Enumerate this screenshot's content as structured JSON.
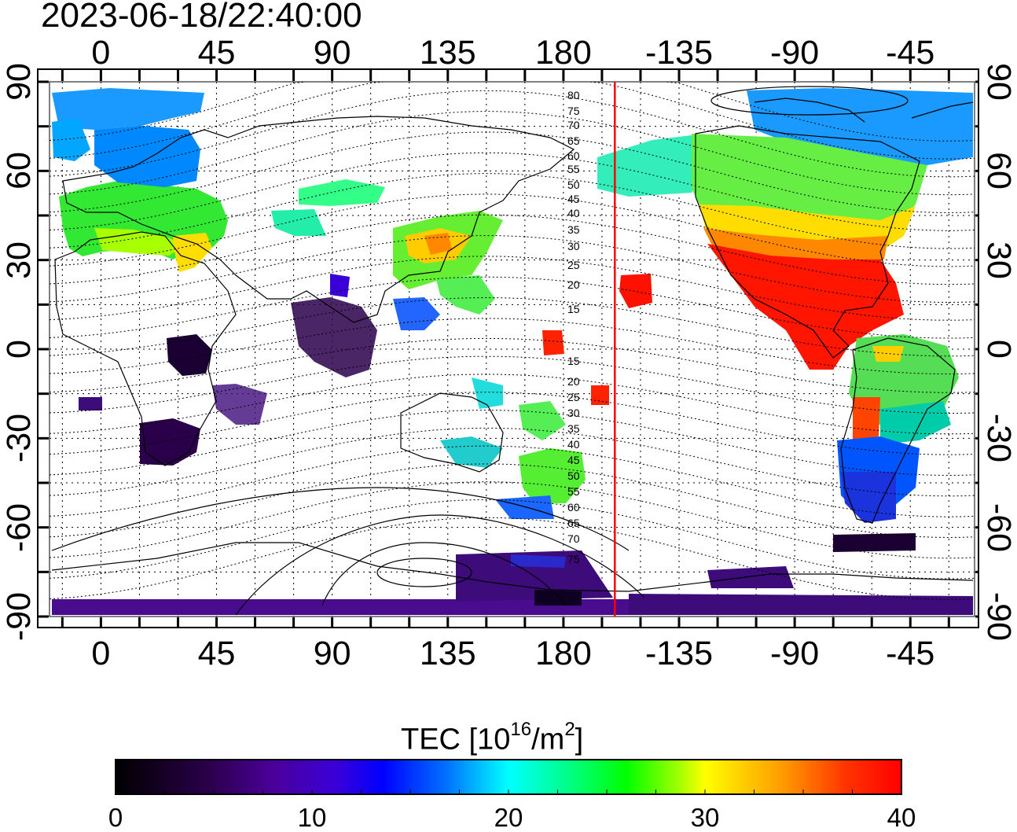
{
  "timestamp": "2023-06-18/22:40:00",
  "map": {
    "projection": "equirectangular",
    "lon_start": -20,
    "lon_end": 340,
    "lat_range": [
      -90,
      90
    ],
    "top_ticks": [
      "0",
      "45",
      "90",
      "135",
      "180",
      "-135",
      "-90",
      "-45"
    ],
    "bottom_ticks": [
      "0",
      "45",
      "90",
      "135",
      "180",
      "-135",
      "-90",
      "-45"
    ],
    "left_ticks": [
      "90",
      "60",
      "30",
      "0",
      "-30",
      "-60",
      "-90"
    ],
    "right_ticks": [
      "90",
      "60",
      "30",
      "0",
      "-30",
      "-60",
      "-90"
    ],
    "meridian_line_lon": 200,
    "meridian_line_color": "#ff0000",
    "contour_labels_north": [
      "80",
      "75",
      "70",
      "65",
      "60",
      "55",
      "50",
      "45",
      "40",
      "35",
      "30",
      "25",
      "20",
      "15"
    ],
    "contour_labels_south": [
      "15",
      "20",
      "25",
      "30",
      "35",
      "40",
      "45",
      "50",
      "55",
      "60",
      "65",
      "70",
      "75"
    ]
  },
  "colorbar": {
    "title": "TEC  [10",
    "exponent": "16",
    "unit_mid": "/m",
    "unit_exp": "2",
    "unit_end": "]",
    "ticks": [
      "0",
      "10",
      "20",
      "30",
      "40"
    ],
    "range": [
      0,
      40
    ],
    "colors": [
      "#000000",
      "#2b004b",
      "#4a0099",
      "#3a00d8",
      "#0000ff",
      "#0070ff",
      "#00e6ff",
      "#00ff80",
      "#00ff00",
      "#aaff00",
      "#ffff00",
      "#ff9900",
      "#ff4400",
      "#ff0000"
    ]
  }
}
